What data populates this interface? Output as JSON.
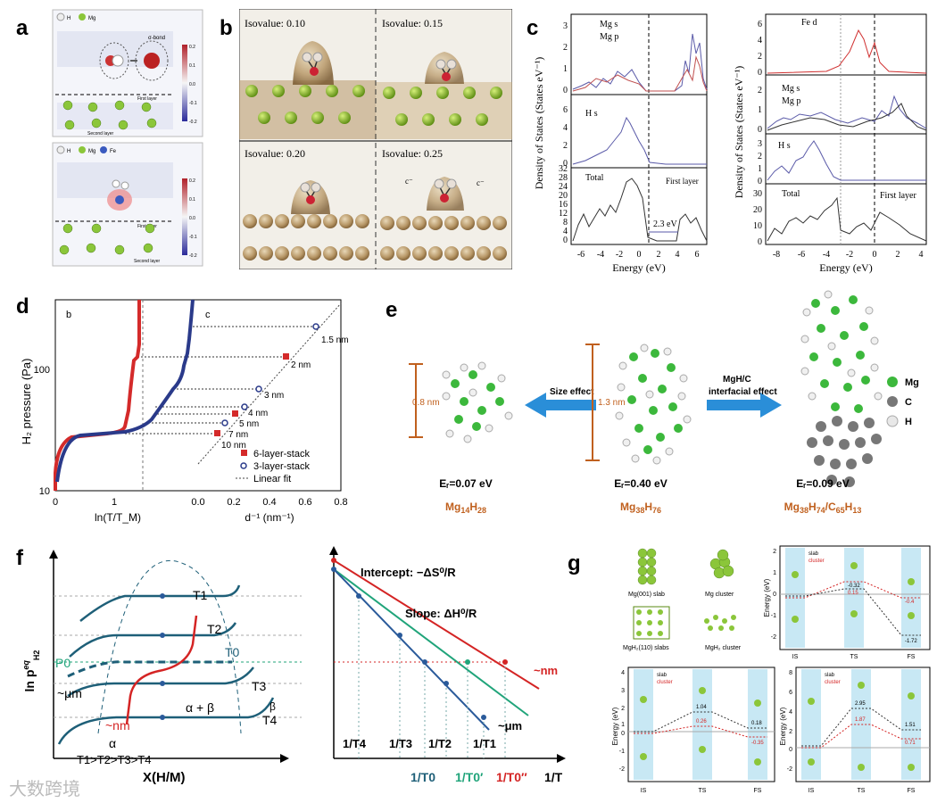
{
  "labels": {
    "a": "a",
    "b": "b",
    "c": "c",
    "d": "d",
    "e": "e",
    "f": "f",
    "g": "g"
  },
  "panel_a": {
    "top_legend": [
      "H",
      "Mg"
    ],
    "bottom_legend": [
      "H",
      "Mg",
      "Fe"
    ],
    "layer_top": [
      "First layer",
      "Second layer"
    ],
    "layer_bottom": [
      "First layer",
      "Second layer"
    ],
    "top_callout": "σ-bond",
    "colorbar_top": [
      "0.2",
      "0.1",
      "0.0",
      "-0.1",
      "-0.2"
    ],
    "colorbar_bottom": [
      "0.2",
      "0.1",
      "0.0",
      "-0.1",
      "-0.2"
    ]
  },
  "panel_b": {
    "isovalues": [
      "Isovalue: 0.10",
      "Isovalue: 0.15",
      "Isovalue: 0.20",
      "Isovalue: 0.25"
    ],
    "charge_label": "c⁻"
  },
  "panel_c": {
    "left": {
      "ylabel": "Density of States (States eV⁻¹)",
      "xlabel": "Energy (eV)",
      "xticks": [
        "-6",
        "-4",
        "-2",
        "0",
        "2",
        "4",
        "6"
      ],
      "sub1": {
        "legend": [
          "Mg s",
          "Mg p"
        ],
        "yticks": [
          "0",
          "1",
          "2",
          "3"
        ]
      },
      "sub2": {
        "legend": [
          "H s"
        ],
        "yticks": [
          "0",
          "2",
          "4",
          "6"
        ]
      },
      "sub3": {
        "legend": [
          "Total"
        ],
        "note": "First layer",
        "gap": "2.3 eV",
        "yticks": [
          "0",
          "4",
          "8",
          "12",
          "16",
          "20",
          "24",
          "28",
          "32"
        ]
      }
    },
    "right": {
      "ylabel": "Density of States (States eV⁻¹)",
      "xlabel": "Energy (eV)",
      "xticks": [
        "-8",
        "-6",
        "-4",
        "-2",
        "0",
        "2",
        "4"
      ],
      "sub0": {
        "legend": [
          "Fe d"
        ],
        "yticks": [
          "0",
          "2",
          "4",
          "6"
        ]
      },
      "sub1": {
        "legend": [
          "Mg s",
          "Mg p"
        ],
        "yticks": [
          "0",
          "1",
          "2"
        ]
      },
      "sub2": {
        "legend": [
          "H s"
        ],
        "yticks": [
          "0",
          "1",
          "2",
          "3"
        ]
      },
      "sub3": {
        "legend": [
          "Total"
        ],
        "note": "First layer",
        "yticks": [
          "0",
          "10",
          "20",
          "30"
        ]
      }
    },
    "colors": {
      "mg_s": "#5a5aa8",
      "mg_p": "#c05050",
      "fe_d": "#d03030",
      "line": "#333333"
    }
  },
  "panel_d": {
    "ylabel": "H₂ pressure (Pa)",
    "xlabel_left": "ln(T/T_M)",
    "xlabel_right": "d⁻¹ (nm⁻¹)",
    "yticks": [
      "10",
      "100"
    ],
    "xticks_left": [
      "0",
      "1"
    ],
    "xticks_right": [
      "0.0",
      "0.2",
      "0.4",
      "0.6",
      "0.8"
    ],
    "corner_b": "b",
    "corner_c": "c",
    "sizes": [
      "1.5 nm",
      "2 nm",
      "3 nm",
      "4 nm",
      "5 nm",
      "7 nm",
      "10 nm"
    ],
    "legend": [
      "6-layer-stack",
      "3-layer-stack",
      "Linear fit"
    ],
    "colors": {
      "red": "#d42a2a",
      "blue": "#2a3a8a"
    }
  },
  "panel_e": {
    "left_size": "0.8 nm",
    "mid_size": "1.3 nm",
    "arrow_left": "Size effect",
    "arrow_right_1": "MgH/C",
    "arrow_right_2": "interfacial effect",
    "energies": [
      "Eᵣ=0.07 eV",
      "Eᵣ=0.40 eV",
      "Eᵣ=0.09 eV"
    ],
    "formulas": [
      {
        "p": [
          "Mg",
          "14",
          "H",
          "28"
        ]
      },
      {
        "p": [
          "Mg",
          "38",
          "H",
          "76"
        ]
      },
      {
        "p": [
          "Mg",
          "38",
          "H",
          "74",
          "/C",
          "65",
          "H",
          "13"
        ]
      }
    ],
    "legend": [
      "Mg",
      "C",
      "H"
    ],
    "colors": {
      "mg": "#3cb83c",
      "c": "#777777",
      "h": "#e8e8e8",
      "orange": "#c0601e"
    }
  },
  "panel_f": {
    "ylabel": "ln p",
    "ylabel_sup": "eq",
    "ylabel_sub": "H2",
    "xlabel": "X(H/M)",
    "temps": [
      "T1",
      "T2",
      "T0",
      "T3",
      "T4"
    ],
    "P0": "P0",
    "um": "~μm",
    "nm": "~nm",
    "alpha": "α",
    "alpha_beta": "α + β",
    "beta": "β",
    "order": "T1>T2>T3>T4",
    "intercept": "Intercept: −ΔS⁰/R",
    "slope": "Slope: ΔH⁰/R",
    "right_nm": "~nm",
    "right_um": "~μm",
    "inv_temps": [
      "1/T4",
      "1/T3",
      "1/T2",
      "1/T1"
    ],
    "inv_t0": [
      "1/T0",
      "1/T0′",
      "1/T0″"
    ],
    "inv_T": "1/T",
    "colors": {
      "teal": "#1e5f78",
      "red": "#d42424",
      "green": "#20a47a",
      "blue": "#2a5a9a"
    }
  },
  "panel_g": {
    "structs": [
      "Mg(001) slab",
      "Mg cluster",
      "MgH₂(110) slabs",
      "MgH₂ cluster"
    ],
    "plots": [
      {
        "ylabel": "Energy (eV)",
        "yticks": [
          "2",
          "1",
          "0",
          "-1",
          "-2"
        ],
        "xticks": [
          "IS",
          "TS",
          "FS"
        ],
        "legend": [
          "slab",
          "cluster"
        ],
        "vals": [
          "-0.32",
          "0.15",
          "-0.4",
          "-1.72"
        ]
      },
      {
        "ylabel": "Energy (eV)",
        "yticks": [
          "4",
          "3",
          "2",
          "1",
          "0",
          "-1",
          "-2"
        ],
        "xticks": [
          "IS",
          "TS",
          "FS"
        ],
        "legend": [
          "slab",
          "cluster"
        ],
        "vals": [
          "1.04",
          "0.26",
          "0.18",
          "-0.35"
        ]
      },
      {
        "ylabel": "Energy (eV)",
        "yticks": [
          "8",
          "6",
          "4",
          "2",
          "0",
          "-2"
        ],
        "xticks": [
          "IS",
          "TS",
          "FS"
        ],
        "legend": [
          "slab",
          "cluster"
        ],
        "vals": [
          "2.95",
          "1.87",
          "1.51",
          "0.71"
        ]
      }
    ]
  },
  "watermark": "大数跨境"
}
